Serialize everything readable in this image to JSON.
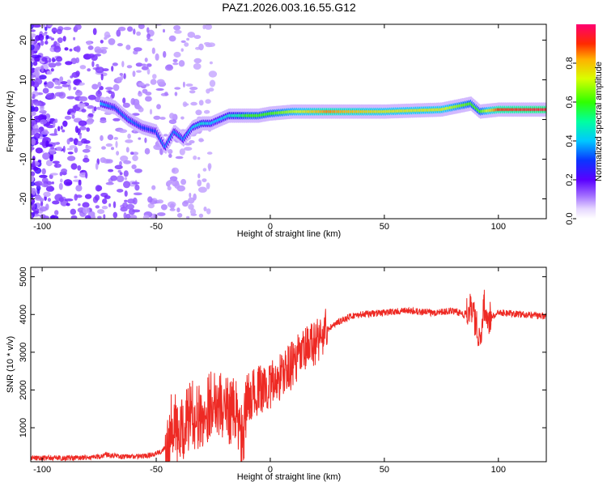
{
  "chart_data": [
    {
      "type": "heatmap",
      "title": "PAZ1.2026.003.16.55.G12",
      "xlabel": "Height of straight line (km)",
      "ylabel": "Frequency (Hz)",
      "xlim": [
        -105,
        121
      ],
      "ylim": [
        -25,
        24
      ],
      "xticks": [
        -100,
        -50,
        0,
        50,
        100
      ],
      "yticks": [
        -20,
        -10,
        0,
        10,
        20
      ],
      "colorbar": {
        "label": "Normalized spectral amplitude",
        "range": [
          0,
          1
        ],
        "ticks": [
          "0.0",
          "0.2",
          "0.4",
          "0.6",
          "0.8"
        ]
      },
      "ridge": {
        "description": "frequency of peak amplitude vs height",
        "x": [
          -74,
          -68,
          -62,
          -56,
          -50,
          -46,
          -42,
          -38,
          -34,
          -30,
          -26,
          -22,
          -18,
          -14,
          -10,
          -5,
          0,
          10,
          25,
          50,
          75,
          88,
          92,
          100,
          121
        ],
        "frequency": [
          4,
          3,
          0,
          -2,
          -3,
          -7,
          -3,
          -5,
          -2,
          -1,
          -1,
          0,
          1,
          1,
          1,
          1,
          1.5,
          2,
          2,
          2,
          2.5,
          4,
          2,
          2.5,
          2.5
        ],
        "amplitude": [
          0.4,
          0.3,
          0.35,
          0.3,
          0.3,
          0.35,
          0.35,
          0.35,
          0.4,
          0.45,
          0.4,
          0.4,
          0.45,
          0.5,
          0.6,
          0.6,
          0.6,
          0.7,
          0.85,
          0.75,
          0.75,
          0.6,
          0.6,
          0.9,
          0.95
        ]
      }
    },
    {
      "type": "line",
      "xlabel": "Height of straight line (km)",
      "ylabel": "SNR (10 * v/v)",
      "xlim": [
        -105,
        121
      ],
      "ylim": [
        100,
        5250
      ],
      "xticks": [
        -100,
        -50,
        0,
        50,
        100
      ],
      "yticks": [
        1000,
        2000,
        3000,
        4000,
        5000
      ],
      "color": "#ee2a24",
      "series": [
        {
          "name": "SNR",
          "x": [
            -105,
            -95,
            -85,
            -75,
            -72,
            -65,
            -55,
            -48,
            -45,
            -43,
            -40,
            -35,
            -30,
            -25,
            -20,
            -15,
            -12,
            -10,
            -5,
            0,
            5,
            10,
            15,
            20,
            25,
            30,
            35,
            40,
            50,
            60,
            70,
            80,
            85,
            88,
            90,
            92,
            94,
            96,
            100,
            110,
            121
          ],
          "y": [
            200,
            200,
            200,
            220,
            300,
            230,
            250,
            350,
            600,
            1300,
            700,
            1400,
            1200,
            1800,
            1500,
            1400,
            600,
            1800,
            2000,
            2100,
            2400,
            2700,
            3000,
            3300,
            3600,
            3800,
            3950,
            4000,
            4050,
            4100,
            4050,
            4100,
            4000,
            4300,
            3800,
            3400,
            4300,
            3900,
            4050,
            4000,
            3950
          ]
        }
      ]
    }
  ]
}
